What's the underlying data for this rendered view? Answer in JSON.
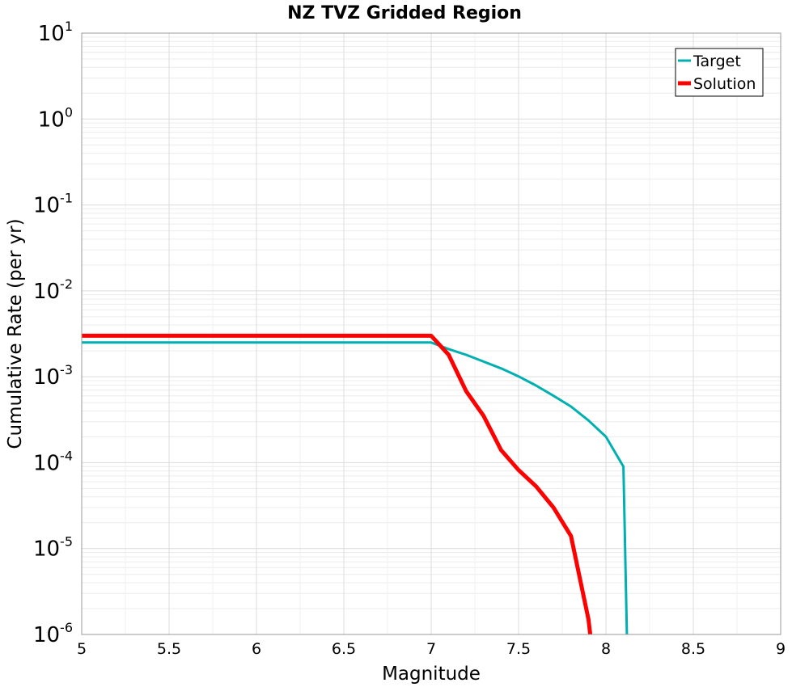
{
  "chart_data": {
    "type": "line",
    "title": "NZ TVZ Gridded Region",
    "xlabel": "Magnitude",
    "ylabel": "Cumulative Rate (per yr)",
    "xlim": [
      5,
      9
    ],
    "ylim": [
      1e-06,
      10
    ],
    "yscale": "log",
    "grid": true,
    "legend_position": "top-right",
    "x_ticks": [
      5,
      5.5,
      6,
      6.5,
      7,
      7.5,
      8,
      8.5,
      9
    ],
    "x_tick_labels": [
      "5",
      "5.5",
      "6",
      "6.5",
      "7",
      "7.5",
      "8",
      "8.5",
      "9"
    ],
    "y_ticks": [
      {
        "base": "10",
        "exp": "1",
        "value": 10
      },
      {
        "base": "10",
        "exp": "0",
        "value": 1
      },
      {
        "base": "10",
        "exp": "-1",
        "value": 0.1
      },
      {
        "base": "10",
        "exp": "-2",
        "value": 0.01
      },
      {
        "base": "10",
        "exp": "-3",
        "value": 0.001
      },
      {
        "base": "10",
        "exp": "-4",
        "value": 0.0001
      },
      {
        "base": "10",
        "exp": "-5",
        "value": 1e-05
      },
      {
        "base": "10",
        "exp": "-6",
        "value": 1e-06
      }
    ],
    "series": [
      {
        "name": "Target",
        "color": "#00b0b0",
        "x": [
          5.0,
          7.0,
          7.1,
          7.2,
          7.3,
          7.4,
          7.5,
          7.6,
          7.7,
          7.8,
          7.9,
          8.0,
          8.1,
          8.12
        ],
        "y": [
          0.0025,
          0.0025,
          0.0021,
          0.0018,
          0.0015,
          0.00125,
          0.00101,
          0.00079,
          0.0006,
          0.00045,
          0.00031,
          0.0002,
          9e-05,
          1e-06
        ]
      },
      {
        "name": "Solution",
        "color": "#ff0000",
        "x": [
          5.0,
          7.0,
          7.1,
          7.2,
          7.3,
          7.4,
          7.5,
          7.6,
          7.7,
          7.8,
          7.9,
          7.91
        ],
        "y": [
          0.003,
          0.003,
          0.0018,
          0.00068,
          0.00035,
          0.00014,
          8.2e-05,
          5.3e-05,
          3e-05,
          1.4e-05,
          1.5e-06,
          1e-06
        ]
      }
    ]
  }
}
